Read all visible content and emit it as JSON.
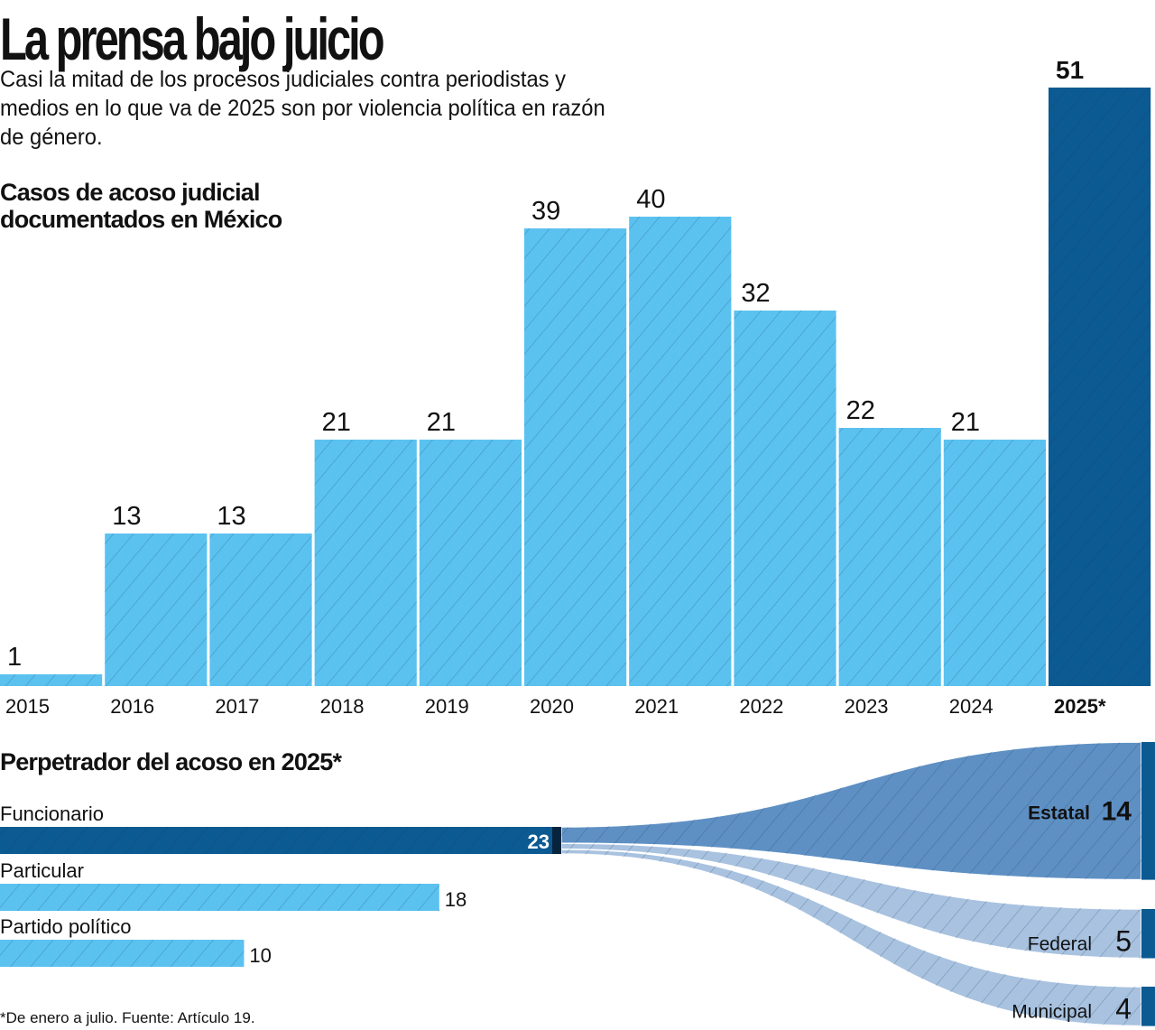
{
  "header": {
    "title": "La prensa bajo juicio",
    "subtitle": "Casi la mitad de los procesos judiciales contra periodistas y medios en lo que va de 2025 son por violencia política en razón de género."
  },
  "colors": {
    "bar_light": "#5bc2f0",
    "bar_dark": "#0b5a92",
    "flow_estatal": "#5e90c4",
    "flow_other": "#a8c2e0",
    "hatch": "#1a3a5a"
  },
  "chart_data": [
    {
      "type": "bar",
      "title": "Casos de acoso judicial documentados en México",
      "categories": [
        "2015",
        "2016",
        "2017",
        "2018",
        "2019",
        "2020",
        "2021",
        "2022",
        "2023",
        "2024",
        "2025*"
      ],
      "values": [
        1,
        13,
        13,
        21,
        21,
        39,
        40,
        32,
        22,
        21,
        51
      ],
      "highlight": [
        "2025*"
      ],
      "xlabel": "",
      "ylabel": "",
      "ylim": [
        0,
        51
      ],
      "grid": false
    },
    {
      "type": "bar",
      "orientation": "horizontal",
      "title": "Perpetrador del acoso en 2025*",
      "categories": [
        "Funcionario",
        "Particular",
        "Partido político"
      ],
      "values": [
        23,
        18,
        10
      ],
      "highlight": [
        "Funcionario"
      ],
      "flows": {
        "source": "Funcionario",
        "targets": [
          {
            "name": "Estatal",
            "value": 14
          },
          {
            "name": "Federal",
            "value": 5
          },
          {
            "name": "Municipal",
            "value": 4
          }
        ]
      }
    }
  ],
  "footnote": "*De enero a julio. Fuente: Artículo 19."
}
